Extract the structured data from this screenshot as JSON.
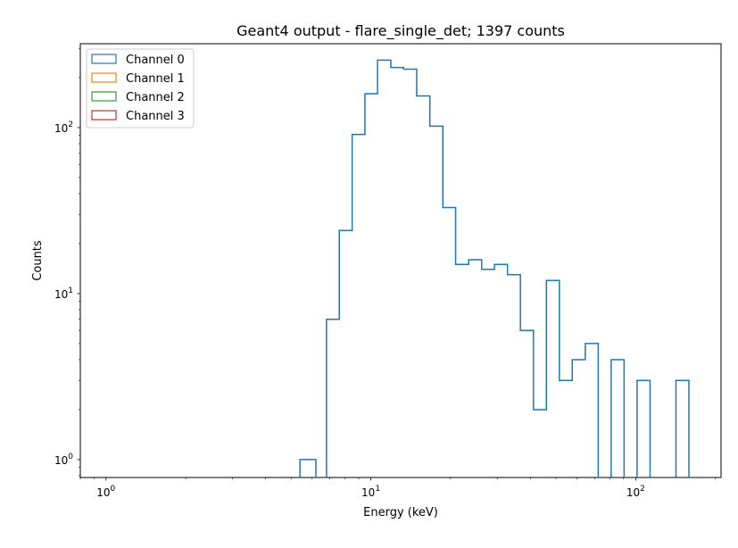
{
  "chart_data": {
    "type": "histogram",
    "title": "Geant4 output - flare_single_det; 1397 counts",
    "xlabel": "Energy (keV)",
    "ylabel": "Counts",
    "xscale": "log",
    "yscale": "log",
    "xlim": [
      0.8,
      210
    ],
    "ylim": [
      0.78,
      320
    ],
    "x_ticks": [
      {
        "value": 1,
        "label": "10",
        "exp": "0"
      },
      {
        "value": 10,
        "label": "10",
        "exp": "1"
      },
      {
        "value": 100,
        "label": "10",
        "exp": "2"
      }
    ],
    "y_ticks": [
      {
        "value": 1,
        "label": "10",
        "exp": "0"
      },
      {
        "value": 10,
        "label": "10",
        "exp": "1"
      },
      {
        "value": 100,
        "label": "10",
        "exp": "2"
      }
    ],
    "grid": false,
    "legend_position": "top-left",
    "series": [
      {
        "name": "Channel 0",
        "color": "#1f77b4",
        "bin_edges": [
          5.4,
          6.2,
          6.8,
          7.6,
          8.5,
          9.5,
          10.6,
          11.9,
          13.3,
          14.9,
          16.7,
          18.7,
          20.9,
          23.4,
          26.2,
          29.3,
          32.8,
          36.7,
          41.1,
          46.0,
          51.5,
          57.6,
          64.5,
          72.2,
          80.8,
          90.4,
          101.2,
          113.3,
          126.8,
          141.9,
          158.8
        ],
        "counts": [
          1,
          0,
          7,
          24,
          91,
          160,
          255,
          230,
          225,
          155,
          102,
          33,
          15,
          16,
          14,
          15,
          13,
          6,
          2,
          12,
          3,
          4,
          5,
          0,
          4,
          0,
          3,
          0,
          0,
          3
        ]
      },
      {
        "name": "Channel 1",
        "color": "#ff7f0e",
        "bin_edges": [],
        "counts": []
      },
      {
        "name": "Channel 2",
        "color": "#2ca02c",
        "bin_edges": [],
        "counts": []
      },
      {
        "name": "Channel 3",
        "color": "#d62728",
        "bin_edges": [],
        "counts": []
      }
    ]
  }
}
